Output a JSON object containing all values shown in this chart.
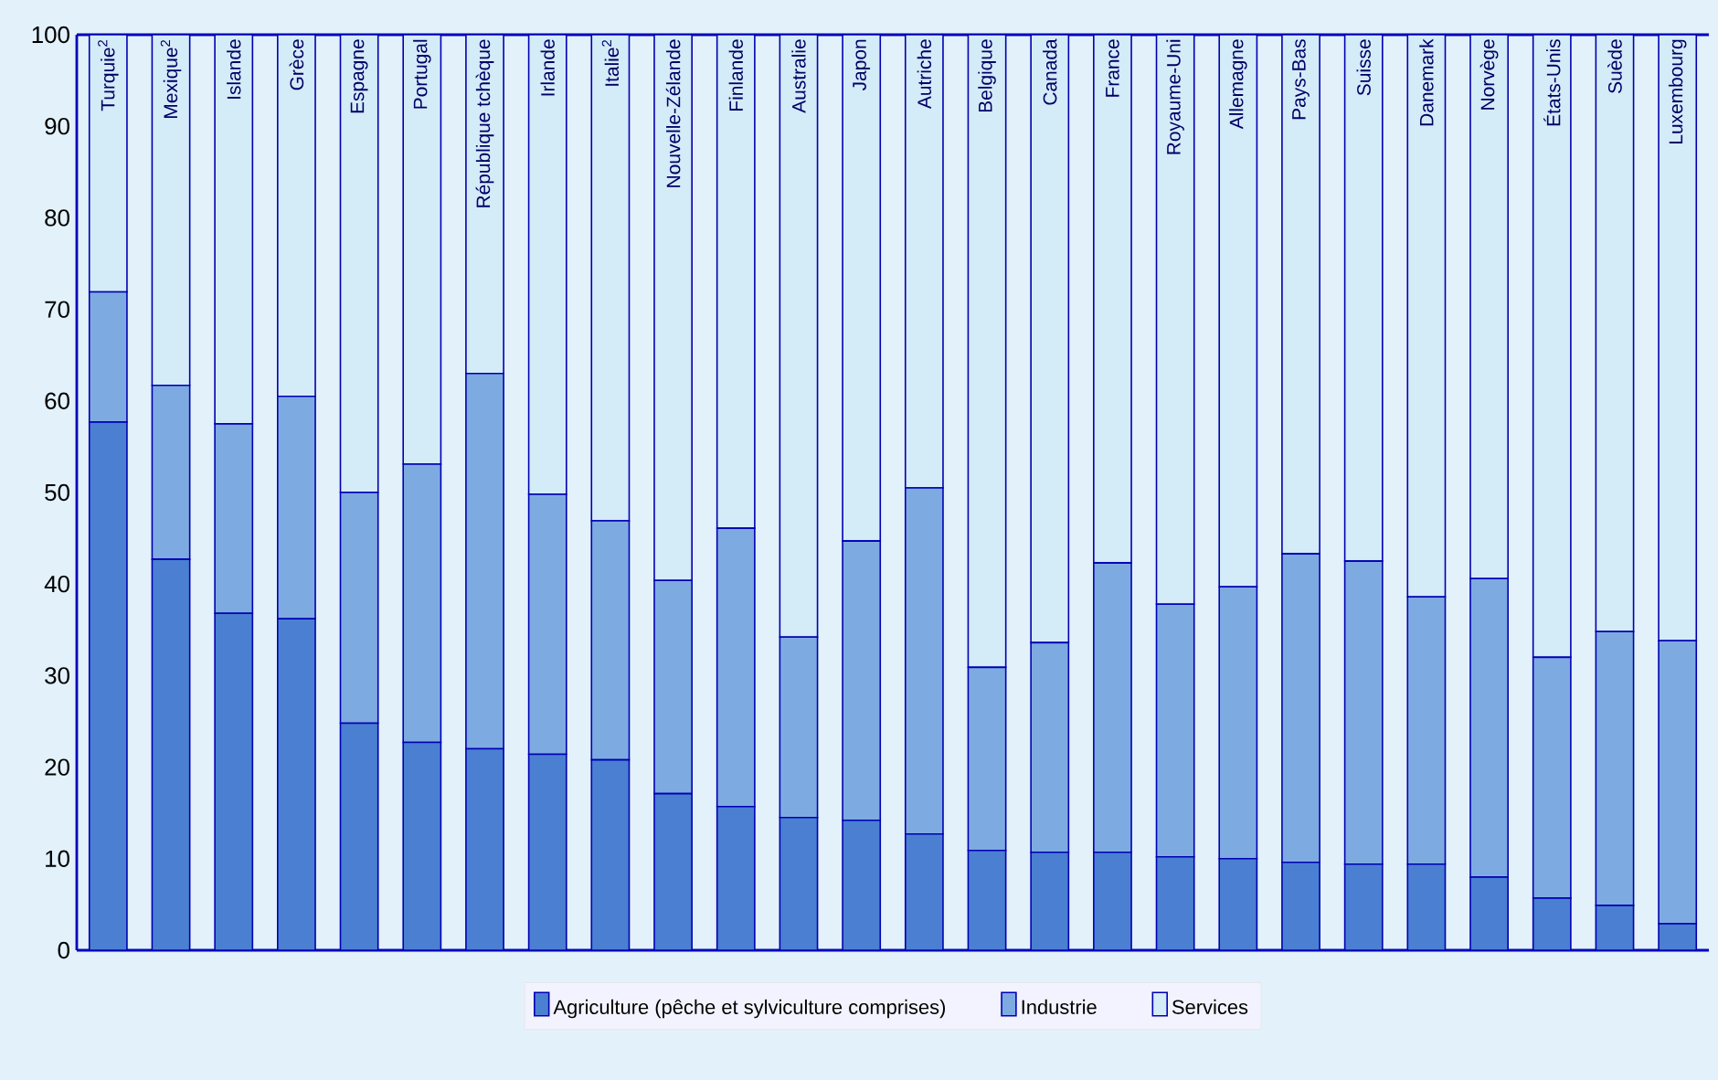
{
  "chart_data": {
    "type": "bar",
    "stacked": true,
    "categories": [
      "Turquie$^{2}$",
      "Mexique$^{2}$",
      "Islande",
      "Grèce",
      "Espagne",
      "Portugal",
      "République tchèque",
      "Irlande",
      "Italie$^{2}$",
      "Nouvelle-Zélande",
      "Finlande",
      "Australie",
      "Japon",
      "Autriche",
      "Belgique",
      "Canada",
      "France",
      "Royaume-Uni",
      "Allemagne",
      "Pays-Bas",
      "Suisse",
      "Danemark",
      "Norvège",
      "États-Unis",
      "Suède",
      "Luxembourg"
    ],
    "series": [
      {
        "name": "Agriculture (pêche et sylviculture comprises)",
        "color": "#4a7fd2",
        "values": [
          57.7,
          42.7,
          36.8,
          36.2,
          24.8,
          22.7,
          22.0,
          21.4,
          20.8,
          17.1,
          15.7,
          14.5,
          14.2,
          12.7,
          10.9,
          10.7,
          10.7,
          10.2,
          10.0,
          9.6,
          9.4,
          9.4,
          8.0,
          5.7,
          4.9,
          2.9
        ]
      },
      {
        "name": "Industrie",
        "color": "#7eaae2",
        "values": [
          14.2,
          19.0,
          20.7,
          24.3,
          25.2,
          30.4,
          41.0,
          28.4,
          26.1,
          23.3,
          30.4,
          19.7,
          30.5,
          37.8,
          20.0,
          22.9,
          31.6,
          27.6,
          29.7,
          33.7,
          33.1,
          29.2,
          32.6,
          26.3,
          29.9,
          30.9
        ]
      },
      {
        "name": "Services",
        "color": "#d4ebf8",
        "values": [
          28.1,
          38.3,
          42.5,
          39.5,
          50.0,
          46.9,
          37.0,
          50.2,
          53.1,
          59.6,
          53.9,
          65.8,
          55.3,
          49.5,
          69.1,
          66.4,
          57.7,
          62.2,
          60.3,
          56.7,
          57.5,
          61.4,
          59.4,
          68.0,
          65.2,
          66.2
        ]
      }
    ],
    "ylim": [
      0,
      100
    ],
    "yticks": [
      0,
      10,
      20,
      30,
      40,
      50,
      60,
      70,
      80,
      90,
      100
    ],
    "grid": false,
    "legend": "bottom"
  }
}
